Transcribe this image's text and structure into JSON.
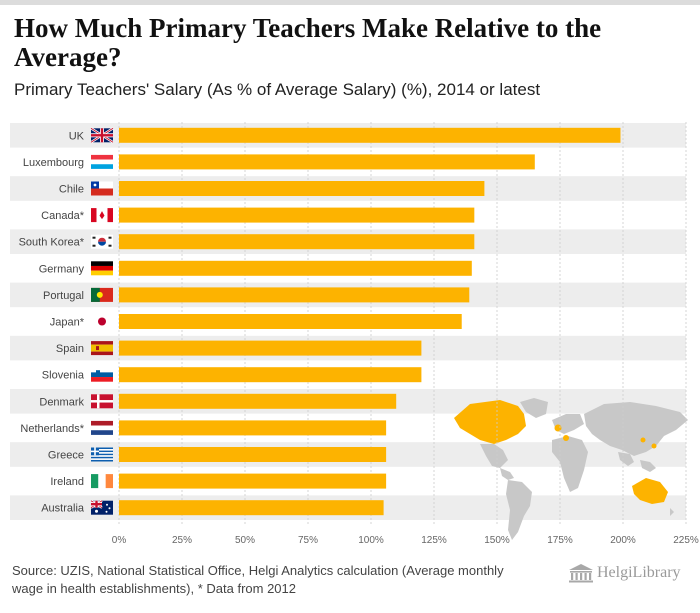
{
  "title": "How Much Primary Teachers Make Relative to the Average?",
  "subtitle": "Primary Teachers' Salary (As % of Average Salary) (%), 2014 or latest",
  "source": "Source: UZIS, National Statistical Office, Helgi Analytics calculation (Average monthly wage in health establishments), * Data from 2012",
  "brand": "HelgiLibrary",
  "colors": {
    "bar": "#FDB300",
    "stripe": "#ededed",
    "grid": "#cccccc"
  },
  "chart_data": {
    "type": "bar",
    "orientation": "horizontal",
    "title": "How Much Primary Teachers Make Relative to the Average?",
    "subtitle": "Primary Teachers' Salary (As % of Average Salary) (%), 2014 or latest",
    "categories": [
      "UK",
      "Luxembourg",
      "Chile",
      "Canada*",
      "South Korea*",
      "Germany",
      "Portugal",
      "Japan*",
      "Spain",
      "Slovenia",
      "Denmark",
      "Netherlands*",
      "Greece",
      "Ireland",
      "Australia"
    ],
    "values": [
      199,
      165,
      145,
      141,
      141,
      140,
      139,
      136,
      120,
      120,
      110,
      106,
      106,
      106,
      105
    ],
    "xlim": [
      0,
      225
    ],
    "xticks": [
      0,
      25,
      50,
      75,
      100,
      125,
      150,
      175,
      200,
      225
    ],
    "tick_suffix": "%",
    "grid": true,
    "xlabel": "",
    "ylabel": ""
  }
}
